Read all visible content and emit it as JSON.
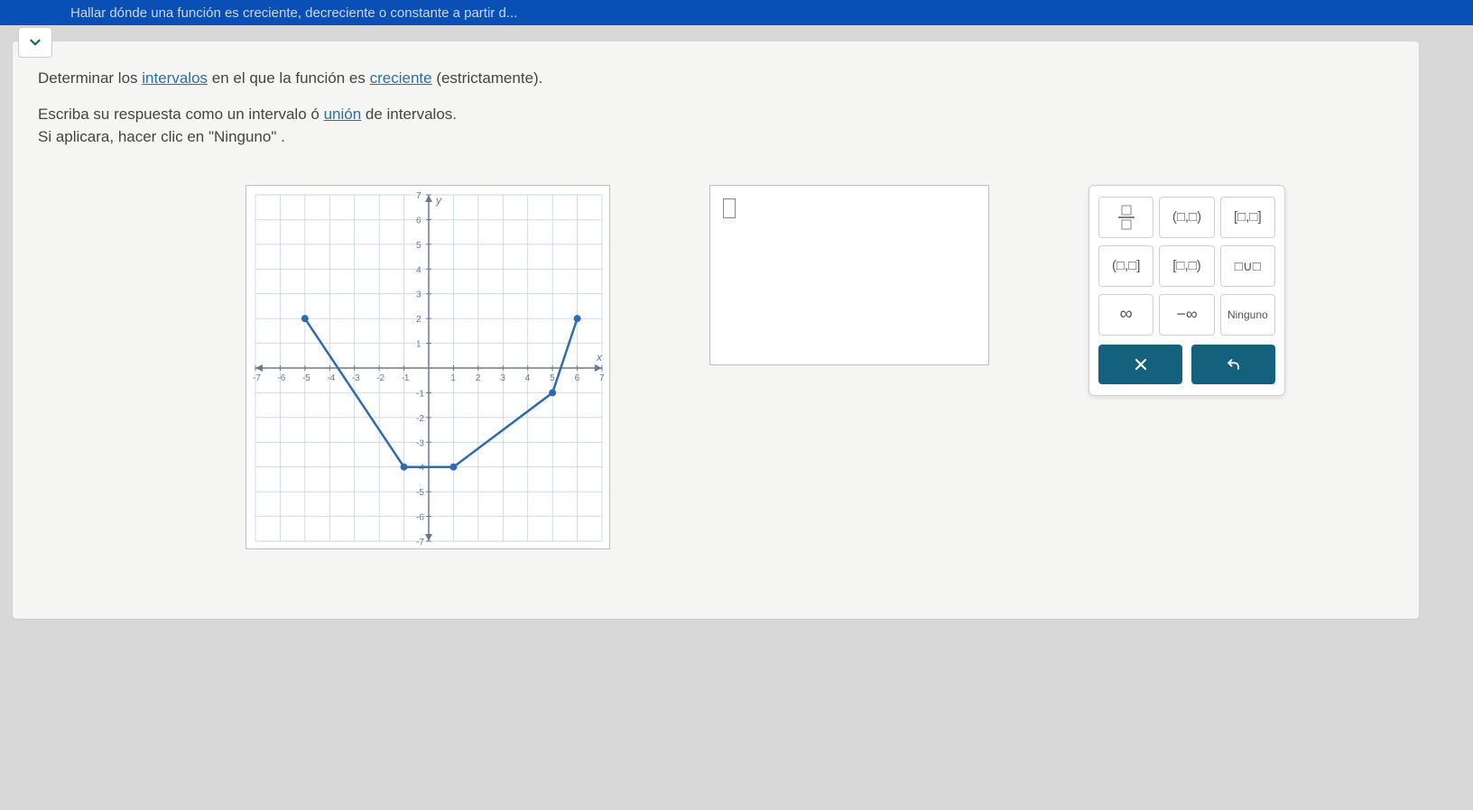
{
  "header": {
    "title": "Hallar dónde una función es creciente, decreciente o constante a partir d..."
  },
  "question": {
    "line1_prefix": "Determinar los ",
    "line1_link1": "intervalos",
    "line1_mid": " en el que la función es ",
    "line1_link2": "creciente",
    "line1_suffix": " (estrictamente).",
    "line2_prefix": "Escriba su respuesta como un intervalo ó ",
    "line2_link": "unión",
    "line2_suffix": " de intervalos.",
    "line3": "Si aplicara, hacer clic en \"Ninguno\" ."
  },
  "graph": {
    "xmin": -7,
    "xmax": 7,
    "ymin": -7,
    "ymax": 7,
    "tick_step": 1,
    "axis_label_x": "x",
    "axis_label_y": "y",
    "grid_color": "#b8cfe6",
    "axis_color": "#6a7890",
    "line_color": "#2f6ab3",
    "point_color": "#2f6ab3",
    "line_width": 2.5,
    "point_radius": 4,
    "points": [
      {
        "x": -5,
        "y": 2
      },
      {
        "x": -1,
        "y": -4
      },
      {
        "x": 1,
        "y": -4
      },
      {
        "x": 5,
        "y": -1
      },
      {
        "x": 6,
        "y": 2
      }
    ]
  },
  "keypad": {
    "frac_label": "□/□",
    "open_open": "(□,□)",
    "closed_closed": "[□,□]",
    "open_closed": "(□,□]",
    "closed_open": "[□,□)",
    "union": "□∪□",
    "infinity": "∞",
    "neg_infinity": "−∞",
    "none": "Ninguno"
  },
  "colors": {
    "header_bg": "#0a4fb5",
    "action_bg": "#14617d"
  }
}
